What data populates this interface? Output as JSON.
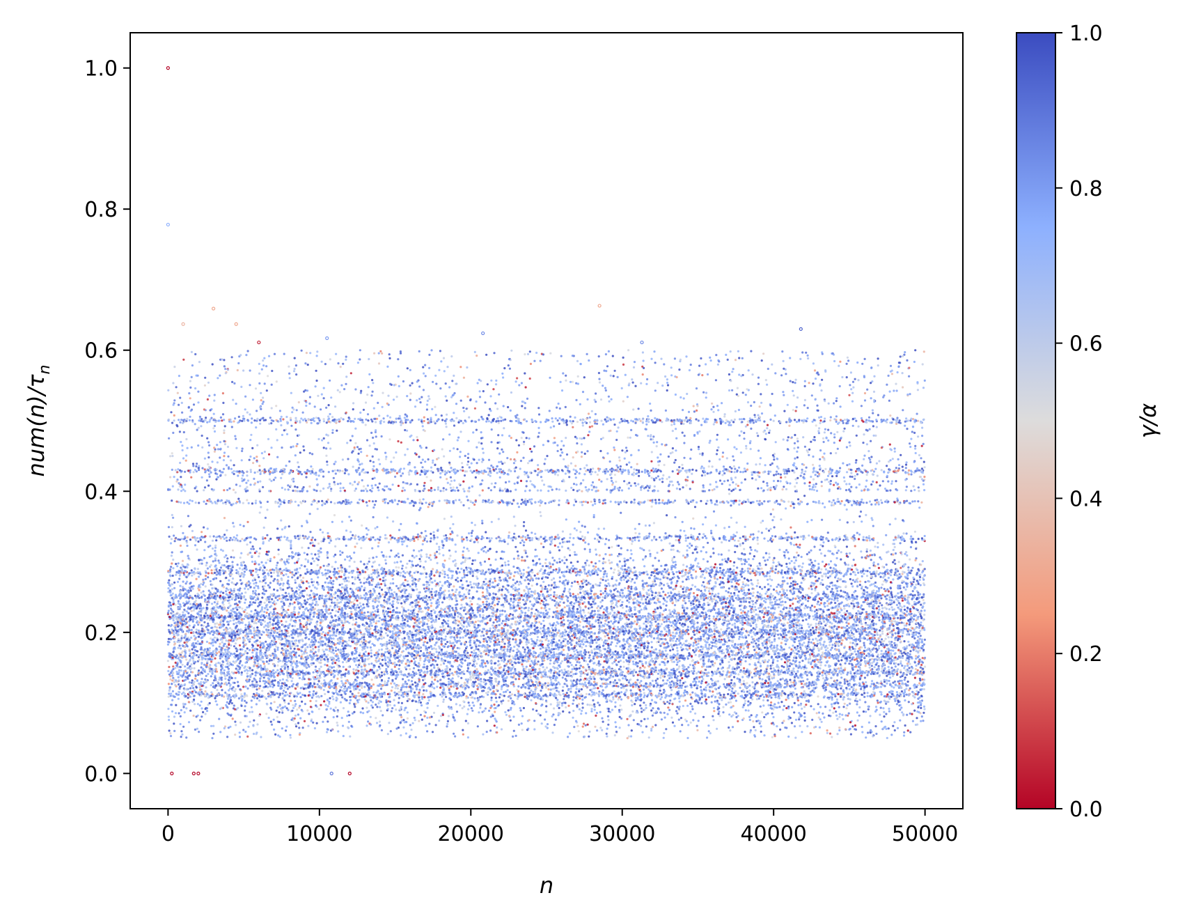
{
  "chart_data": {
    "type": "scatter",
    "title": "",
    "xlabel": "n",
    "ylabel": "num(n)/τ_n",
    "ylabel_parts": {
      "main": "num(n)/τ",
      "sub": "n"
    },
    "xlim": [
      -2500,
      52500
    ],
    "ylim": [
      -0.05,
      1.05
    ],
    "xticks": [
      0,
      10000,
      20000,
      30000,
      40000,
      50000
    ],
    "xtick_labels": [
      "0",
      "10000",
      "20000",
      "30000",
      "40000",
      "50000"
    ],
    "yticks": [
      0.0,
      0.2,
      0.4,
      0.6,
      0.8,
      1.0
    ],
    "ytick_labels": [
      "0.0",
      "0.2",
      "0.4",
      "0.6",
      "0.8",
      "1.0"
    ],
    "grid": false,
    "colormap": "coolwarm_r",
    "color_variable": "γ/α",
    "colorbar": {
      "label": "γ/α",
      "range": [
        0.0,
        1.0
      ],
      "ticks": [
        0.0,
        0.2,
        0.4,
        0.6,
        0.8,
        1.0
      ],
      "tick_labels": [
        "0.0",
        "0.2",
        "0.4",
        "0.6",
        "0.8",
        "1.0"
      ],
      "stops": [
        {
          "v": 0.0,
          "color": "#b40426"
        },
        {
          "v": 0.25,
          "color": "#f49a7b"
        },
        {
          "v": 0.5,
          "color": "#dddcdc"
        },
        {
          "v": 0.75,
          "color": "#8db0fe"
        },
        {
          "v": 1.0,
          "color": "#3b4cc0"
        }
      ]
    },
    "points": [
      {
        "x": 0,
        "y": 1.0,
        "c": 0.0
      },
      {
        "x": 0,
        "y": 0.778,
        "c": 0.75
      },
      {
        "x": 250,
        "y": 0.0,
        "c": 0.0
      },
      {
        "x": 1700,
        "y": 0.0,
        "c": 0.0
      },
      {
        "x": 2000,
        "y": 0.0,
        "c": 0.0
      },
      {
        "x": 10800,
        "y": 0.0,
        "c": 0.9
      },
      {
        "x": 12000,
        "y": 0.0,
        "c": 0.0
      },
      {
        "x": 3000,
        "y": 0.659,
        "c": 0.3
      },
      {
        "x": 28500,
        "y": 0.663,
        "c": 0.3
      },
      {
        "x": 41800,
        "y": 0.63,
        "c": 0.95
      },
      {
        "x": 6000,
        "y": 0.611,
        "c": 0.05
      },
      {
        "x": 1000,
        "y": 0.637,
        "c": 0.35
      },
      {
        "x": 4500,
        "y": 0.637,
        "c": 0.3
      },
      {
        "x": 20800,
        "y": 0.624,
        "c": 0.85
      },
      {
        "x": 31300,
        "y": 0.611,
        "c": 0.85
      },
      {
        "x": 10500,
        "y": 0.617,
        "c": 0.8
      }
    ],
    "bulk_distribution": {
      "n_points": 22000,
      "x_range": [
        0,
        50000
      ],
      "y_core_range": [
        0.05,
        0.4
      ],
      "y_dense_center": 0.2,
      "y_sparse_upper_range": [
        0.4,
        0.6
      ],
      "preferred_levels": [
        0.5,
        0.4286,
        0.3846,
        0.3333,
        0.2857,
        0.25,
        0.2222,
        0.2,
        0.1667,
        0.1429,
        0.125,
        0.1111
      ],
      "color_mean": 0.78
    }
  }
}
